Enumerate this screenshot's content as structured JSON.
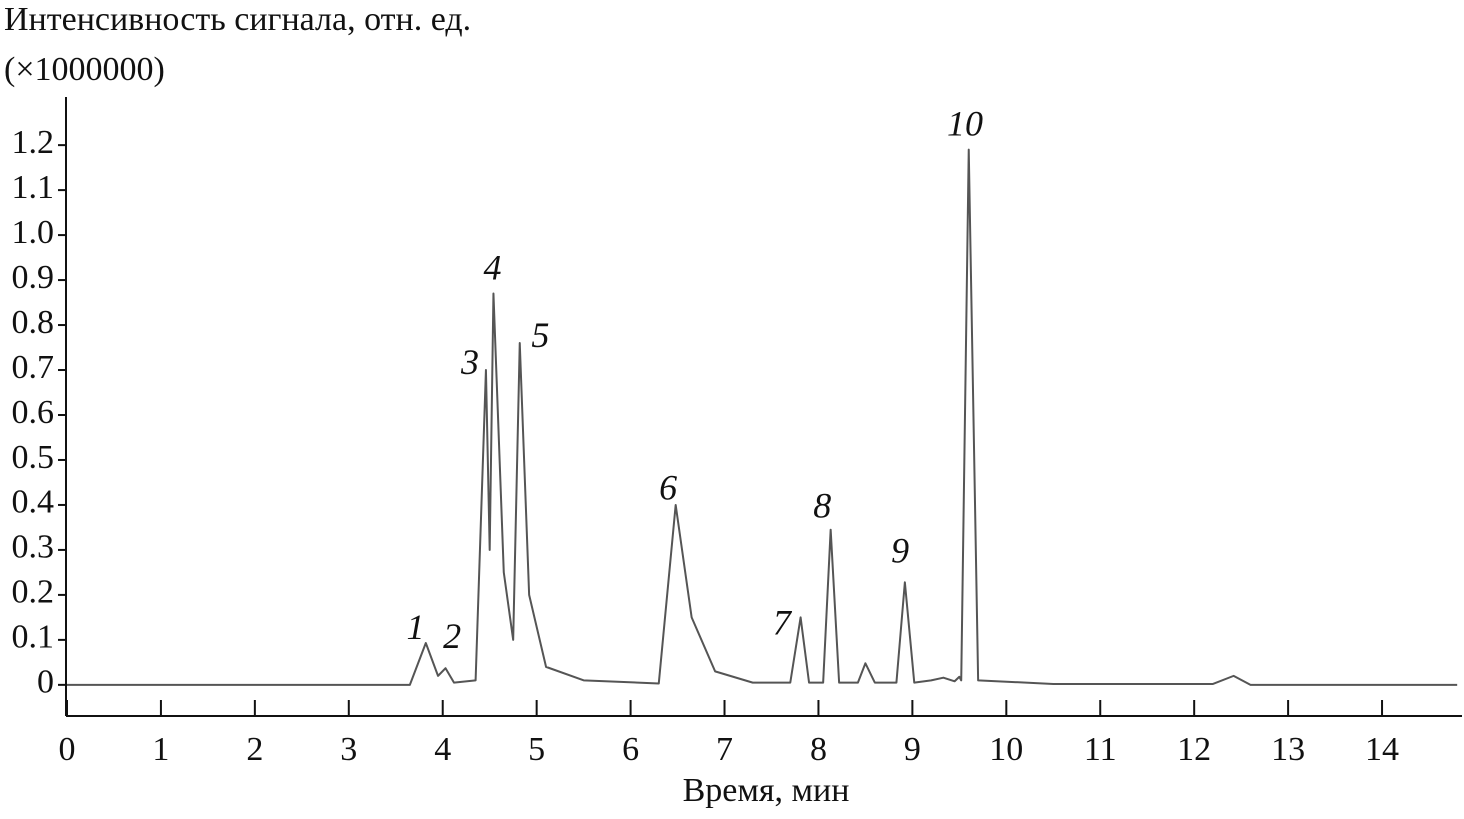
{
  "chart_data": {
    "type": "line",
    "ylabel_lines": [
      "Интенсивность сигнала, отн. ед.",
      "(×1000000)"
    ],
    "xlabel": "Время, мин",
    "x": [
      0,
      3.65,
      3.82,
      3.95,
      4.03,
      4.12,
      4.35,
      4.46,
      4.5,
      4.54,
      4.65,
      4.75,
      4.82,
      4.92,
      5.1,
      5.5,
      6.3,
      6.48,
      6.65,
      6.9,
      7.3,
      7.7,
      7.81,
      7.9,
      8.05,
      8.13,
      8.22,
      8.42,
      8.5,
      8.6,
      8.83,
      8.92,
      9.02,
      9.2,
      9.33,
      9.45,
      9.5,
      9.52,
      9.6,
      9.7,
      10.5,
      12.2,
      12.42,
      12.6,
      14.8
    ],
    "series": [
      {
        "color": "#555555",
        "values": [
          0,
          0,
          0.093,
          0.02,
          0.037,
          0.005,
          0.01,
          0.7,
          0.3,
          0.87,
          0.25,
          0.1,
          0.76,
          0.2,
          0.04,
          0.01,
          0.003,
          0.4,
          0.15,
          0.03,
          0.005,
          0.005,
          0.15,
          0.005,
          0.005,
          0.345,
          0.005,
          0.005,
          0.048,
          0.005,
          0.005,
          0.228,
          0.005,
          0.01,
          0.016,
          0.008,
          0.018,
          0.01,
          1.19,
          0.01,
          0.002,
          0.002,
          0.02,
          0,
          0
        ]
      }
    ],
    "annotations": [
      {
        "label": "1",
        "x": 3.71,
        "y": 0.12
      },
      {
        "label": "2",
        "x": 4.1,
        "y": 0.1
      },
      {
        "label": "3",
        "x": 4.29,
        "y": 0.71
      },
      {
        "label": "4",
        "x": 4.53,
        "y": 0.92
      },
      {
        "label": "5",
        "x": 5.04,
        "y": 0.77
      },
      {
        "label": "6",
        "x": 6.4,
        "y": 0.43
      },
      {
        "label": "7",
        "x": 7.61,
        "y": 0.13
      },
      {
        "label": "8",
        "x": 8.04,
        "y": 0.39
      },
      {
        "label": "9",
        "x": 8.87,
        "y": 0.29
      },
      {
        "label": "10",
        "x": 9.56,
        "y": 1.24
      }
    ],
    "xlim": [
      0,
      14.83
    ],
    "ylim": [
      -0.067,
      1.307
    ],
    "xticks": [
      0,
      1,
      2,
      3,
      4,
      5,
      6,
      7,
      8,
      9,
      10,
      11,
      12,
      13,
      14
    ],
    "yticks": [
      0,
      0.1,
      0.2,
      0.3,
      0.4,
      0.5,
      0.6,
      0.7,
      0.8,
      0.9,
      {
        "value": 1,
        "label": "1.0"
      },
      1.1,
      1.2
    ]
  }
}
